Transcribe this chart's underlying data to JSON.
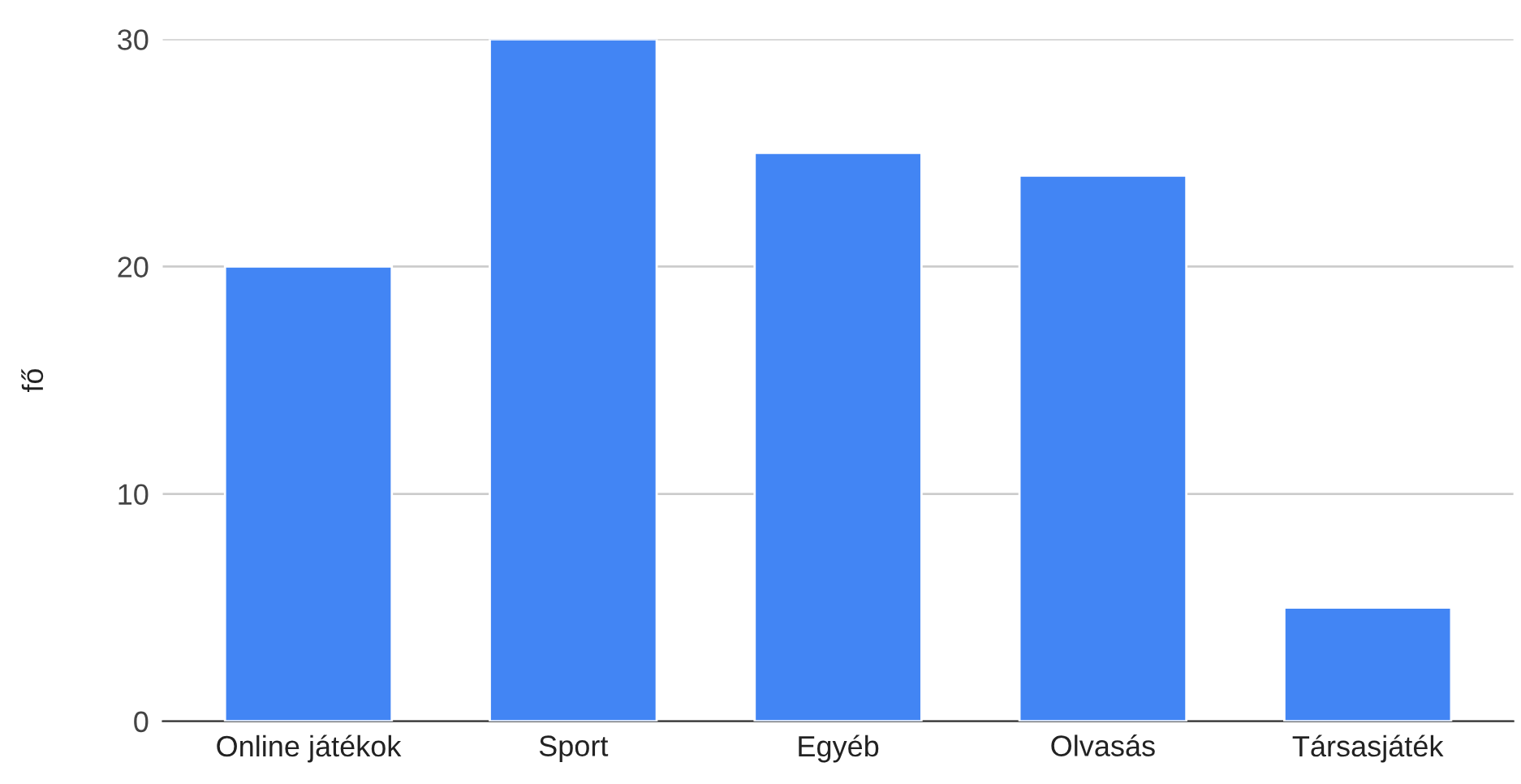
{
  "chart_data": {
    "type": "bar",
    "ylabel": "fő",
    "categories": [
      "Online játékok",
      "Sport",
      "Egyéb",
      "Olvasás",
      "Társasjáték"
    ],
    "values": [
      20,
      30,
      25,
      24,
      5
    ],
    "color": "#4285f4",
    "ylim": [
      0,
      30
    ],
    "yticks": [
      0,
      10,
      20,
      30
    ],
    "grid": "y"
  }
}
